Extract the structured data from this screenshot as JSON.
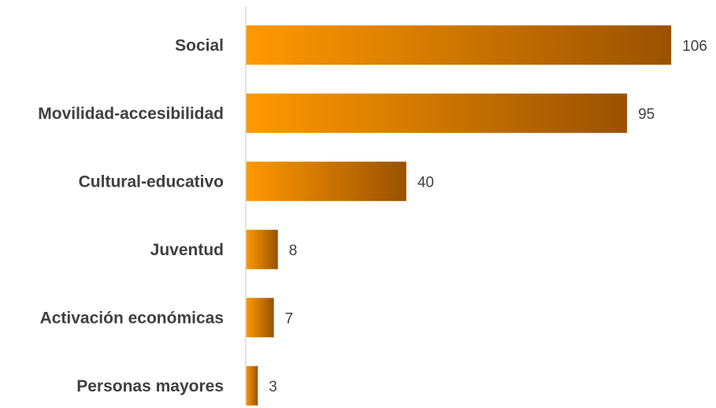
{
  "chart_data": {
    "type": "bar",
    "orientation": "horizontal",
    "categories": [
      "Social",
      "Movilidad-accesibilidad",
      "Cultural-educativo",
      "Juventud",
      "Activación económicas",
      "Personas mayores"
    ],
    "values": [
      106,
      95,
      40,
      8,
      7,
      3
    ],
    "xlim": [
      0,
      115
    ],
    "grid": false,
    "legend": "none",
    "data_labels": true,
    "colors": {
      "bar_start": "#ff9900",
      "bar_end": "#9a5200",
      "axis": "#d9d9d9",
      "text": "#404040"
    }
  }
}
